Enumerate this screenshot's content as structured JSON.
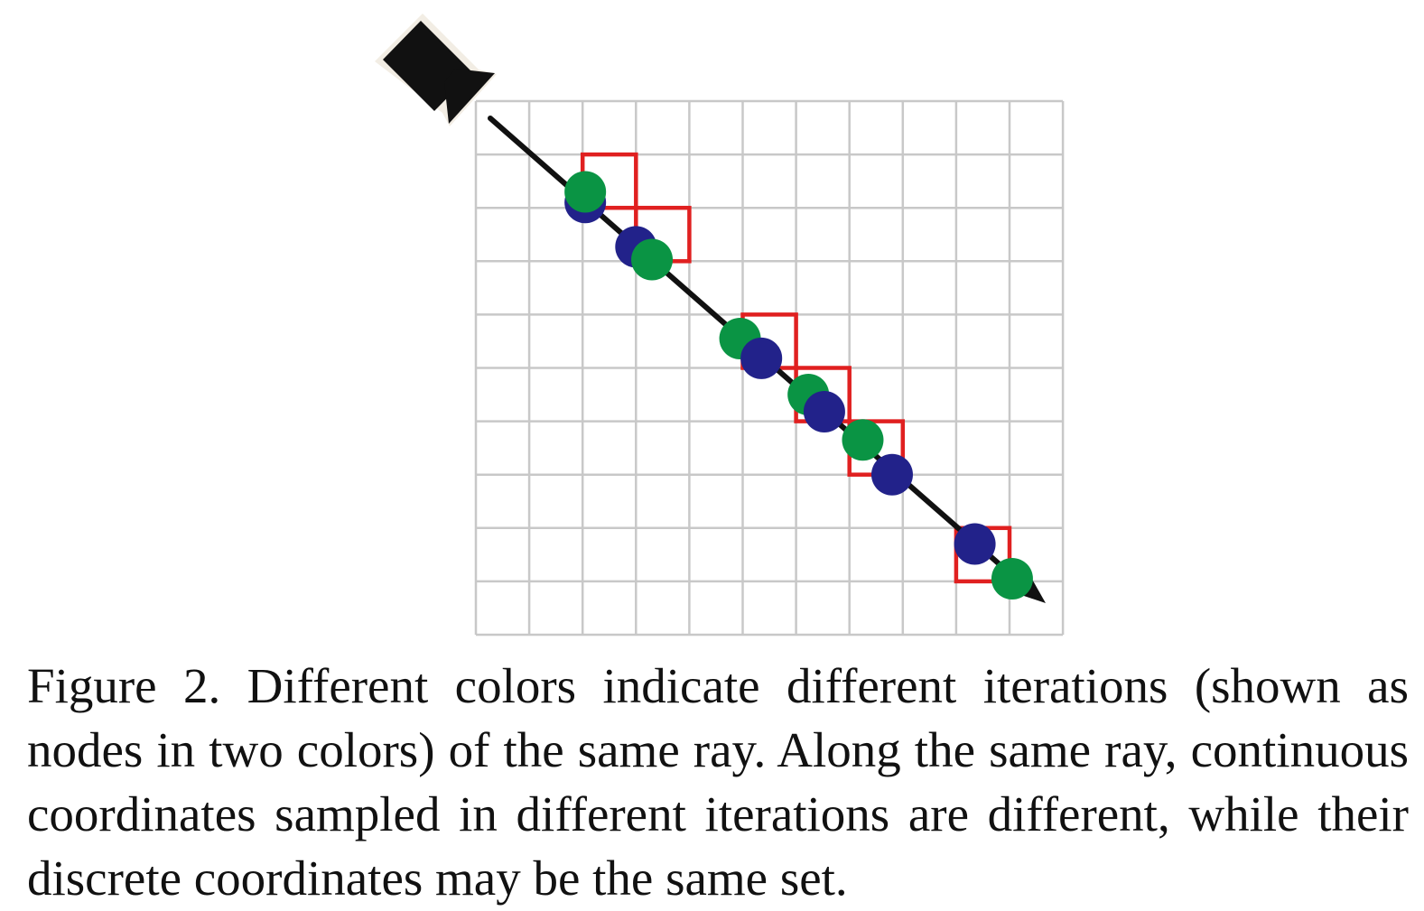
{
  "figure": {
    "grid": {
      "columns": 11,
      "rows": 10
    },
    "colors": {
      "grid": "#c8c8c8",
      "ray": "#111111",
      "camera": "#111111",
      "cell_outline": "#e02020",
      "iteration_a": "#22228a",
      "iteration_b": "#0a9444"
    },
    "icons": [
      "camera-icon",
      "arrow-head-icon"
    ],
    "discrete_cells": [
      [
        2,
        1
      ],
      [
        3,
        2
      ],
      [
        5,
        4
      ],
      [
        6,
        5
      ],
      [
        7,
        6
      ],
      [
        9,
        8
      ]
    ],
    "nodes_iteration_a": [
      [
        2.05,
        1.9
      ],
      [
        3.0,
        2.73
      ],
      [
        5.35,
        4.82
      ],
      [
        6.53,
        5.82
      ],
      [
        7.8,
        7.0
      ],
      [
        9.35,
        8.3
      ]
    ],
    "nodes_iteration_b": [
      [
        2.05,
        1.7
      ],
      [
        3.3,
        2.97
      ],
      [
        4.95,
        4.45
      ],
      [
        6.23,
        5.5
      ],
      [
        7.25,
        6.35
      ],
      [
        10.05,
        8.95
      ]
    ]
  },
  "caption": {
    "text": "Figure 2. Different colors indicate different iterations (shown as nodes in two colors) of the same ray. Along the same ray, continuous coordinates sampled in different iterations are different, while their discrete coordinates may be the same set."
  }
}
